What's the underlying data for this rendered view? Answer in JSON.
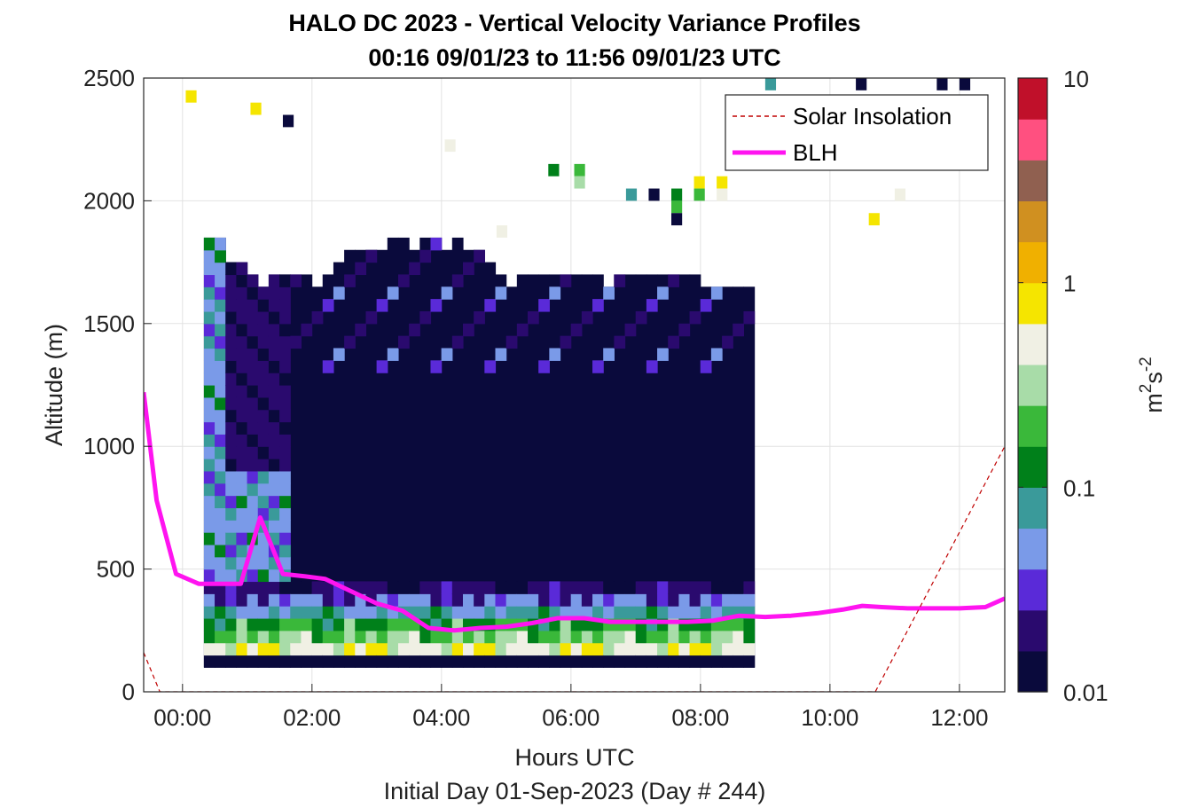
{
  "chart_data": {
    "type": "heatmap",
    "title": "HALO DC 2023 - Vertical Velocity Variance Profiles",
    "subtitle": "00:16 09/01/23 to 11:56 09/01/23  UTC",
    "xlabel": "Hours UTC",
    "xlabel2": "Initial Day 01-Sep-2023 (Day # 244)",
    "ylabel": "Altitude (m)",
    "xlim": [
      -0.6,
      12.7
    ],
    "ylim": [
      0,
      2500
    ],
    "x_ticks": [
      0,
      2,
      4,
      6,
      8,
      10,
      12
    ],
    "x_tick_labels": [
      "00:00",
      "02:00",
      "04:00",
      "06:00",
      "08:00",
      "10:00",
      "12:00"
    ],
    "y_ticks": [
      0,
      500,
      1000,
      1500,
      2000,
      2500
    ],
    "y_tick_labels": [
      "0",
      "500",
      "1000",
      "1500",
      "2000",
      "2500"
    ],
    "grid": true,
    "colorbar": {
      "label": "m²s⁻²",
      "label_base": "m",
      "label_sup1": "2",
      "label_mid": "s",
      "label_sup2": "-2",
      "scale": "log",
      "range": [
        0.01,
        10
      ],
      "ticks": [
        0.01,
        0.1,
        1,
        10
      ],
      "tick_labels": [
        "0.01",
        "0.1",
        "1",
        "10"
      ],
      "colors": [
        "#0a0a3c",
        "#2a0a6e",
        "#5a2ad8",
        "#7a9ae8",
        "#3a9a9a",
        "#00801a",
        "#3ab83a",
        "#a8dca8",
        "#f0f0e4",
        "#f5e500",
        "#f0b000",
        "#d09020",
        "#906050",
        "#ff5080",
        "#c0102a"
      ]
    },
    "legend": {
      "placement": "top-right",
      "entries": [
        {
          "label": "Solar Insolation",
          "color": "#c00000",
          "style": "dashed"
        },
        {
          "label": "BLH",
          "color": "#ff14f0",
          "style": "solid"
        }
      ]
    },
    "heatmap": {
      "x_start": 0.33,
      "x_step": 0.1667,
      "y_step": 50,
      "rows": [
        {
          "y": 100,
          "cols": [
            0,
            50
          ],
          "value": 0.01
        },
        {
          "y": 150,
          "cols": [
            0,
            50
          ],
          "value": 0.6
        },
        {
          "y": 200,
          "cols": [
            0,
            50
          ],
          "value": 0.3
        },
        {
          "y": 250,
          "cols": [
            0,
            50
          ],
          "value": 0.2
        },
        {
          "y": 300,
          "cols": [
            0,
            50
          ],
          "value": 0.12
        },
        {
          "y": 350,
          "cols": [
            0,
            50
          ],
          "value": 0.08
        },
        {
          "y": 400,
          "cols": [
            0,
            50
          ],
          "value": 0.02
        },
        {
          "y": 450,
          "cols": [
            0,
            50
          ],
          "value": 0.012
        },
        {
          "y": 500,
          "cols": [
            0,
            50
          ],
          "value": 0.011
        },
        {
          "y": 1150,
          "cols": [
            0,
            50
          ],
          "value": 0.011
        },
        {
          "y": 1500,
          "cols": [
            0,
            50
          ],
          "value": 0.013
        },
        {
          "y": 1650,
          "cols": [
            0,
            50
          ],
          "value": 0.02
        }
      ],
      "column_tops": [
        1850,
        1850,
        1750,
        1750,
        1700,
        1650,
        1700,
        1700,
        1700,
        1700,
        1650,
        1700,
        1750,
        1800,
        1800,
        1800,
        1800,
        1850,
        1850,
        1800,
        1850,
        1850,
        1800,
        1850,
        1800,
        1800,
        1750,
        1700,
        1650,
        1700,
        1700,
        1700,
        1700,
        1700,
        1700,
        1700,
        1700,
        1650,
        1700,
        1700,
        1700,
        1700,
        1700,
        1700,
        1700,
        1700,
        1650,
        1650,
        1650,
        1650,
        1650
      ]
    },
    "scatter_cells": [
      {
        "x": 0.05,
        "y": 2450,
        "value": 0.8
      },
      {
        "x": 1.05,
        "y": 2400,
        "value": 0.8
      },
      {
        "x": 1.55,
        "y": 2350,
        "value": 0.01
      },
      {
        "x": 4.05,
        "y": 2250,
        "value": 0.6
      },
      {
        "x": 5.65,
        "y": 2150,
        "value": 0.12
      },
      {
        "x": 6.05,
        "y": 2150,
        "value": 0.2
      },
      {
        "x": 6.05,
        "y": 2100,
        "value": 0.3
      },
      {
        "x": 6.85,
        "y": 2050,
        "value": 0.07
      },
      {
        "x": 7.2,
        "y": 2050,
        "value": 0.01
      },
      {
        "x": 7.55,
        "y": 2050,
        "value": 0.12
      },
      {
        "x": 7.55,
        "y": 2000,
        "value": 0.25
      },
      {
        "x": 7.55,
        "y": 1950,
        "value": 0.013
      },
      {
        "x": 7.9,
        "y": 2100,
        "value": 0.7
      },
      {
        "x": 8.25,
        "y": 2100,
        "value": 0.9
      },
      {
        "x": 8.25,
        "y": 2050,
        "value": 0.45
      },
      {
        "x": 7.9,
        "y": 2050,
        "value": 0.2
      },
      {
        "x": 10.6,
        "y": 1950,
        "value": 0.8
      },
      {
        "x": 11.0,
        "y": 2050,
        "value": 0.6
      },
      {
        "x": 9.0,
        "y": 2500,
        "value": 0.07
      },
      {
        "x": 10.4,
        "y": 2500,
        "value": 0.01
      },
      {
        "x": 11.65,
        "y": 2500,
        "value": 0.01
      },
      {
        "x": 12.0,
        "y": 2500,
        "value": 0.013
      },
      {
        "x": 4.85,
        "y": 1900,
        "value": 0.6
      }
    ],
    "series": [
      {
        "name": "BLH",
        "x": [
          -0.6,
          -0.4,
          -0.1,
          0.25,
          0.6,
          0.9,
          1.2,
          1.55,
          1.9,
          2.2,
          2.6,
          3.0,
          3.4,
          3.8,
          4.2,
          4.6,
          5.0,
          5.4,
          5.8,
          6.2,
          6.6,
          7.0,
          7.4,
          7.8,
          8.2,
          8.6,
          9.0,
          9.4,
          9.8,
          10.2,
          10.5,
          10.8,
          11.2,
          11.6,
          12.0,
          12.4,
          12.7
        ],
        "y": [
          1220,
          780,
          480,
          440,
          440,
          440,
          710,
          480,
          470,
          460,
          410,
          360,
          330,
          260,
          250,
          260,
          265,
          280,
          300,
          300,
          285,
          285,
          285,
          285,
          290,
          310,
          305,
          310,
          320,
          335,
          350,
          345,
          340,
          340,
          340,
          345,
          380
        ]
      },
      {
        "name": "Solar Insolation",
        "x": [
          -0.6,
          -0.35,
          10.7,
          12.7
        ],
        "y": [
          160,
          0,
          0,
          1000
        ]
      }
    ]
  }
}
